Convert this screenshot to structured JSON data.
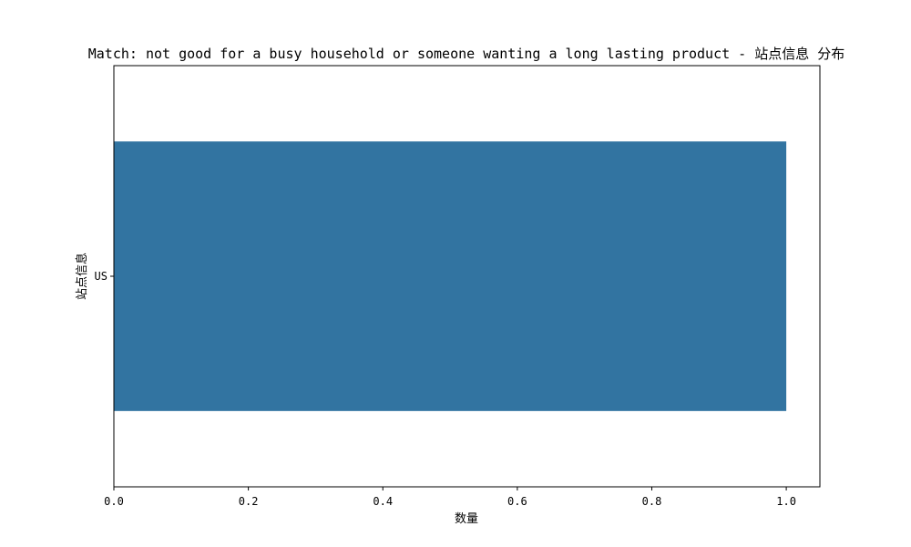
{
  "chart_data": {
    "type": "bar",
    "orientation": "horizontal",
    "title": "Match: not good for a busy household or someone wanting a long lasting product - 站点信息 分布",
    "xlabel": "数量",
    "ylabel": "站点信息",
    "categories": [
      "US"
    ],
    "values": [
      1
    ],
    "xlim": [
      0,
      1.05
    ],
    "xticks": [
      0.0,
      0.2,
      0.4,
      0.6,
      0.8,
      1.0
    ],
    "xtick_labels": [
      "0.0",
      "0.2",
      "0.4",
      "0.6",
      "0.8",
      "1.0"
    ],
    "grid": false,
    "bar_color": "#3274a1"
  }
}
